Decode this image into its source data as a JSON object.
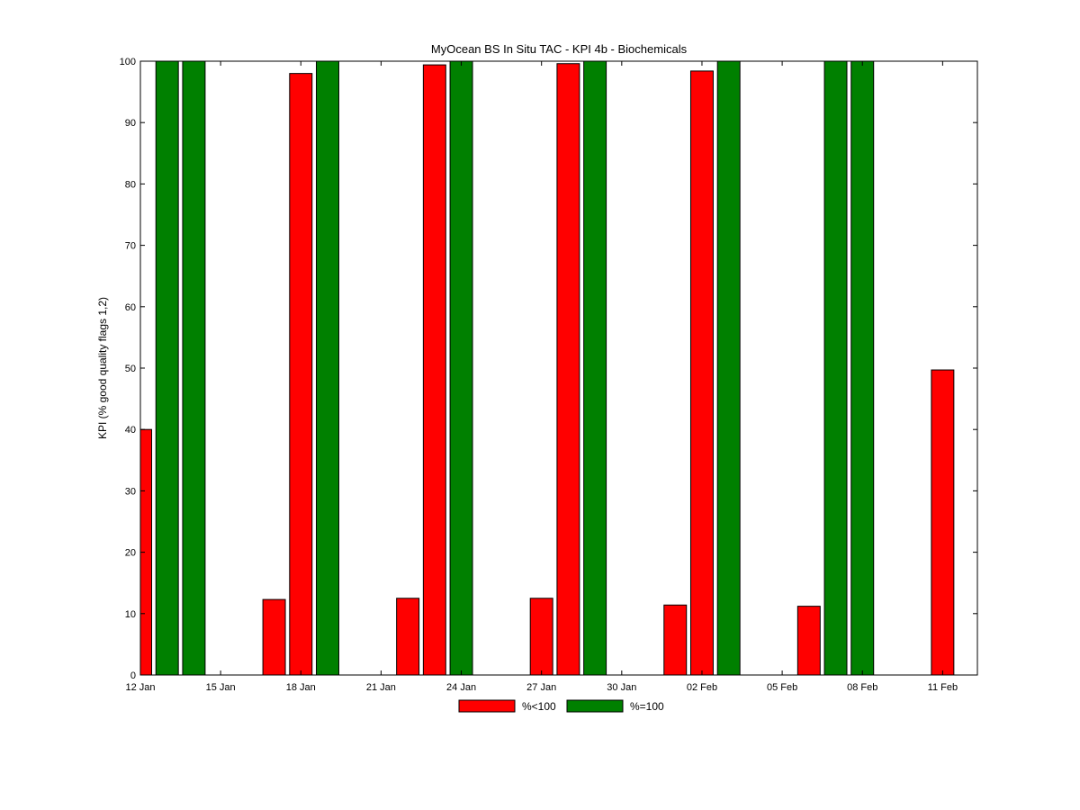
{
  "chart_data": {
    "type": "bar",
    "title": "MyOcean  BS In Situ TAC - KPI 4b - Biochemicals",
    "xlabel": "",
    "ylabel": "KPI (% good quality flags 1,2)",
    "ylim": [
      0,
      100
    ],
    "yticks": [
      0,
      10,
      20,
      30,
      40,
      50,
      60,
      70,
      80,
      90,
      100
    ],
    "xlim": [
      0,
      31.3
    ],
    "xticks": [
      {
        "x": 0,
        "label": "12 Jan"
      },
      {
        "x": 3,
        "label": "15 Jan"
      },
      {
        "x": 6,
        "label": "18 Jan"
      },
      {
        "x": 9,
        "label": "21 Jan"
      },
      {
        "x": 12,
        "label": "24 Jan"
      },
      {
        "x": 15,
        "label": "27 Jan"
      },
      {
        "x": 18,
        "label": "30 Jan"
      },
      {
        "x": 21,
        "label": "02 Feb"
      },
      {
        "x": 24,
        "label": "05 Feb"
      },
      {
        "x": 27,
        "label": "08 Feb"
      },
      {
        "x": 30,
        "label": "11 Feb"
      }
    ],
    "grid": false,
    "legend_position": "bottom-center",
    "bar_width": 0.84,
    "series": [
      {
        "name": "%<100",
        "color": "#ff0000",
        "points": [
          {
            "x": 0,
            "y": 40
          },
          {
            "x": 5,
            "y": 12.3
          },
          {
            "x": 6,
            "y": 98
          },
          {
            "x": 10,
            "y": 12.5
          },
          {
            "x": 11,
            "y": 99.4
          },
          {
            "x": 15,
            "y": 12.5
          },
          {
            "x": 16,
            "y": 99.6
          },
          {
            "x": 20,
            "y": 11.4
          },
          {
            "x": 21,
            "y": 98.4
          },
          {
            "x": 25,
            "y": 11.2
          },
          {
            "x": 30,
            "y": 49.7
          }
        ]
      },
      {
        "name": "%=100",
        "color": "#008000",
        "points": [
          {
            "x": 1,
            "y": 100
          },
          {
            "x": 2,
            "y": 100
          },
          {
            "x": 7,
            "y": 100
          },
          {
            "x": 12,
            "y": 100
          },
          {
            "x": 17,
            "y": 100
          },
          {
            "x": 22,
            "y": 100
          },
          {
            "x": 26,
            "y": 100
          },
          {
            "x": 27,
            "y": 100
          }
        ]
      }
    ]
  }
}
